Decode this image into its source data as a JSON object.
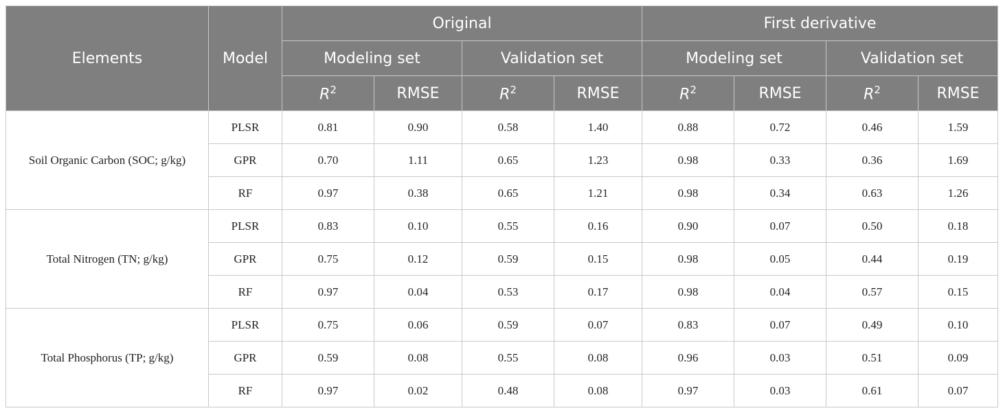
{
  "header": {
    "elements": "Elements",
    "model": "Model",
    "groups": [
      "Original",
      "First derivative"
    ],
    "subgroups": [
      "Modeling set",
      "Validation set",
      "Modeling set",
      "Validation set"
    ],
    "metrics": [
      {
        "base": "R",
        "sup": "2"
      },
      {
        "base": "RMSE"
      },
      {
        "base": "R",
        "sup": "2"
      },
      {
        "base": "RMSE"
      },
      {
        "base": "R",
        "sup": "2"
      },
      {
        "base": "RMSE"
      },
      {
        "base": "R",
        "sup": "2"
      },
      {
        "base": "RMSE"
      }
    ]
  },
  "table": {
    "groups": [
      {
        "element": "Soil Organic Carbon (SOC; g/kg)",
        "rows": [
          {
            "model": "PLSR",
            "values": [
              "0.81",
              "0.90",
              "0.58",
              "1.40",
              "0.88",
              "0.72",
              "0.46",
              "1.59"
            ]
          },
          {
            "model": "GPR",
            "values": [
              "0.70",
              "1.11",
              "0.65",
              "1.23",
              "0.98",
              "0.33",
              "0.36",
              "1.69"
            ]
          },
          {
            "model": "RF",
            "values": [
              "0.97",
              "0.38",
              "0.65",
              "1.21",
              "0.98",
              "0.34",
              "0.63",
              "1.26"
            ]
          }
        ]
      },
      {
        "element": "Total Nitrogen (TN; g/kg)",
        "rows": [
          {
            "model": "PLSR",
            "values": [
              "0.83",
              "0.10",
              "0.55",
              "0.16",
              "0.90",
              "0.07",
              "0.50",
              "0.18"
            ]
          },
          {
            "model": "GPR",
            "values": [
              "0.75",
              "0.12",
              "0.59",
              "0.15",
              "0.98",
              "0.05",
              "0.44",
              "0.19"
            ]
          },
          {
            "model": "RF",
            "values": [
              "0.97",
              "0.04",
              "0.53",
              "0.17",
              "0.98",
              "0.04",
              "0.57",
              "0.15"
            ]
          }
        ]
      },
      {
        "element": "Total Phosphorus (TP; g/kg)",
        "rows": [
          {
            "model": "PLSR",
            "values": [
              "0.75",
              "0.06",
              "0.59",
              "0.07",
              "0.83",
              "0.07",
              "0.49",
              "0.10"
            ]
          },
          {
            "model": "GPR",
            "values": [
              "0.59",
              "0.08",
              "0.55",
              "0.08",
              "0.96",
              "0.03",
              "0.51",
              "0.09"
            ]
          },
          {
            "model": "RF",
            "values": [
              "0.97",
              "0.02",
              "0.48",
              "0.08",
              "0.97",
              "0.03",
              "0.61",
              "0.07"
            ]
          }
        ]
      }
    ]
  }
}
